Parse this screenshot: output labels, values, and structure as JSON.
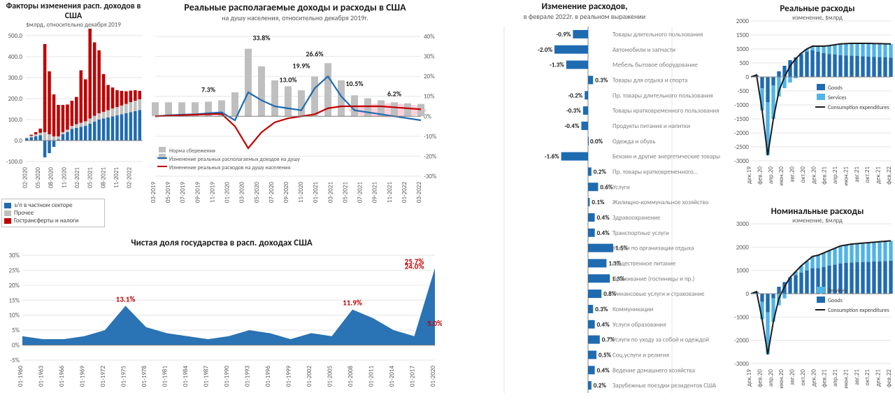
{
  "colors": {
    "blue_primary": "#1f6bb0",
    "blue_light": "#4fb4e8",
    "gray_bar": "#bfbfbf",
    "red_line": "#c00000",
    "black_line": "#1a1a1a",
    "grid": "#e6e6e6",
    "axis": "#808080",
    "text": "#404040"
  },
  "panel1": {
    "title": "Факторы изменения расп. доходов в США",
    "subtitle": "$млрд, относительно декабря 2019",
    "title_fontsize": 12,
    "subtitle_fontsize": 9,
    "ylim": [
      -100,
      500
    ],
    "ytick_step": 100,
    "xlabels": [
      "02-2020",
      "05-2020",
      "08-2020",
      "11-2020",
      "02-2021",
      "05-2021",
      "08-2021",
      "11-2021",
      "02-2022"
    ],
    "series": {
      "zp": {
        "label": "з/п в частном секторе",
        "color": "#1f6bb0",
        "values": [
          10,
          15,
          20,
          25,
          -80,
          -60,
          -30,
          5,
          30,
          40,
          55,
          60,
          65,
          70,
          80,
          90,
          100,
          105,
          110,
          115,
          120,
          125,
          130,
          135,
          140,
          145
        ]
      },
      "other": {
        "label": "Прочее",
        "color": "#bfbfbf",
        "values": [
          5,
          8,
          10,
          12,
          40,
          30,
          20,
          15,
          10,
          12,
          15,
          18,
          20,
          22,
          25,
          28,
          30,
          32,
          35,
          38,
          40,
          42,
          45,
          48,
          50,
          52
        ]
      },
      "transfers": {
        "label": "Гострансферты и налоги",
        "color": "#c00000",
        "values": [
          0,
          5,
          10,
          20,
          420,
          300,
          200,
          150,
          130,
          120,
          120,
          130,
          250,
          200,
          430,
          350,
          300,
          180,
          120,
          100,
          80,
          70,
          60,
          55,
          50,
          40
        ]
      }
    }
  },
  "panel2": {
    "title": "Реальные располагаемые доходы и расходы в США",
    "subtitle": "на душу населения, относительно декабря 2019г.",
    "title_fontsize": 14,
    "ylim_right": [
      -30,
      40
    ],
    "ytick_step_right": 10,
    "xlabels": [
      "03-2019",
      "05-2019",
      "07-2019",
      "09-2019",
      "11-2019",
      "01-2020",
      "03-2020",
      "05-2020",
      "07-2020",
      "09-2020",
      "11-2020",
      "01-2021",
      "03-2021",
      "05-2021",
      "07-2021",
      "09-2021",
      "11-2021",
      "01-2022",
      "03-2022"
    ],
    "data_labels": [
      {
        "text": "7.3%",
        "x_idx": 4,
        "y": 10
      },
      {
        "text": "33.8%",
        "x_idx": 8,
        "y": 36
      },
      {
        "text": "13.0%",
        "x_idx": 10,
        "y": 15
      },
      {
        "text": "19.9%",
        "x_idx": 11,
        "y": 22
      },
      {
        "text": "26.6%",
        "x_idx": 12,
        "y": 28
      },
      {
        "text": "10.5%",
        "x_idx": 15,
        "y": 13
      },
      {
        "text": "6.2%",
        "x_idx": 18,
        "y": 8
      }
    ],
    "savings_bars": {
      "label": "Норма сбережения",
      "color": "#bfbfbf",
      "values": [
        7,
        7,
        7,
        7,
        7.3,
        8,
        12,
        33.8,
        25,
        18,
        15,
        13,
        19.9,
        26.6,
        18,
        10.5,
        9,
        8,
        7,
        6.5,
        6.2
      ]
    },
    "income_line": {
      "label": "Изменение реальных располагаемых доходов на душу",
      "color": "#1f6bb0",
      "values": [
        0,
        0.5,
        0.8,
        1,
        1.5,
        2,
        -2,
        12,
        8,
        5,
        4,
        3,
        14,
        20,
        10,
        3,
        2,
        1,
        0,
        -1,
        -2
      ]
    },
    "expense_line": {
      "label": "Изменение реальных расходов на душу населения",
      "color": "#c00000",
      "values": [
        0,
        0.3,
        0.5,
        0.8,
        1,
        1.2,
        -5,
        -16,
        -8,
        -3,
        -1,
        0,
        1,
        4,
        5,
        5,
        5,
        5,
        4.5,
        4,
        3.5
      ]
    },
    "highlight_ellipse": {
      "color": "#ffb3c6",
      "x_start_idx": 15,
      "x_end_idx": 20,
      "y": 3
    }
  },
  "panel3": {
    "title": "Чистая доля государства в расп. доходах США",
    "title_fontsize": 13,
    "ylim": [
      -5,
      30
    ],
    "ytick_step": 5,
    "xlabels": [
      "01-1960",
      "01-1963",
      "01-1966",
      "01-1969",
      "01-1972",
      "01-1975",
      "01-1978",
      "01-1981",
      "01-1984",
      "01-1987",
      "01-1990",
      "01-1993",
      "01-1996",
      "01-1999",
      "01-2002",
      "01-2005",
      "01-2008",
      "01-2011",
      "01-2014",
      "01-2017",
      "01-2020"
    ],
    "color": "#1f6bb0",
    "data_labels": [
      {
        "text": "13.1%",
        "x_idx": 5,
        "y": 13.1,
        "color": "#c00000"
      },
      {
        "text": "11.9%",
        "x_idx": 16,
        "y": 11.9,
        "color": "#c00000"
      },
      {
        "text": "24.0%",
        "x_idx": 19,
        "y": 24.0,
        "color": "#c00000"
      },
      {
        "text": "25.7%",
        "x_idx": 19,
        "y": 25.7,
        "color": "#c00000"
      },
      {
        "text": "5.0%",
        "x_idx": 20,
        "y": 5.0,
        "color": "#c00000"
      }
    ],
    "values": [
      3,
      2,
      2,
      3,
      5,
      13.1,
      6,
      4,
      3,
      2,
      3,
      5,
      4,
      2,
      4,
      3,
      11.9,
      9,
      5,
      3,
      25.7
    ]
  },
  "panel4": {
    "title": "Изменение расходов,",
    "subtitle": "в феврале 2022г. в реальном выражении",
    "title_fontsize": 13,
    "xlim": [
      -20,
      5
    ],
    "xtick_step": 5,
    "bar_color": "#1f6bb0",
    "categories": [
      {
        "label": "Товары длительного пользования",
        "value": -0.9
      },
      {
        "label": "Автомобили и запчасти",
        "value": -2.0
      },
      {
        "label": "Мебель бытовое оборудование",
        "value": -1.3
      },
      {
        "label": "Товары для отдыха и спорта",
        "value": 0.3
      },
      {
        "label": "Пр. товары длительного пользования",
        "value": -0.2
      },
      {
        "label": "Товары кратковременного пользования",
        "value": -0.3
      },
      {
        "label": "Продукты питания и напитки",
        "value": -0.4
      },
      {
        "label": "Одежда и обувь",
        "value": 0.0
      },
      {
        "label": "Бензин и другие энергетические товары",
        "value": -1.6
      },
      {
        "label": "Пр. товары кратковременного…",
        "value": 0.2
      },
      {
        "label": "Услуги",
        "value": 0.6
      },
      {
        "label": "Жилищно-коммунальное хозяйство",
        "value": 0.1
      },
      {
        "label": "Здравоохранение",
        "value": 0.4
      },
      {
        "label": "Транспортные услуги",
        "value": 0.4
      },
      {
        "label": "Услуги по организации отдыха",
        "value": 1.5
      },
      {
        "label": "Общественное питание",
        "value": 1.1
      },
      {
        "label": "Проживание (гостиницы и пр.)",
        "value": 1.3
      },
      {
        "label": "Финансовые услуги и страхование",
        "value": 0.8
      },
      {
        "label": "Коммуникации",
        "value": 0.3
      },
      {
        "label": "Услуги образования",
        "value": 0.4
      },
      {
        "label": "Услуги по уходу за собой и одеждой",
        "value": 0.7
      },
      {
        "label": "Соц.услуги и религия",
        "value": 0.5
      },
      {
        "label": "Ведение домашнего хозяйства",
        "value": 0.4
      },
      {
        "label": "Зарубежные поездки резидентов США",
        "value": 0.2
      }
    ]
  },
  "panel5": {
    "title": "Реальные расходы",
    "subtitle": "изменение, $млрд",
    "title_fontsize": 13,
    "ylim": [
      -3000,
      2000
    ],
    "ytick_step": 500,
    "xlabels": [
      "дек.19",
      "фев.20",
      "апр.20",
      "июн.20",
      "авг.20",
      "окт.20",
      "дек.20",
      "фев.21",
      "апр.21",
      "июн.21",
      "авг.21",
      "окт.21",
      "дек.21",
      "фев.22"
    ],
    "legend": [
      {
        "label": "Goods",
        "color": "#1f6bb0",
        "type": "box"
      },
      {
        "label": "Services",
        "color": "#4fb4e8",
        "type": "box"
      },
      {
        "label": "Consumption expenditures",
        "color": "#1a1a1a",
        "type": "line"
      }
    ],
    "goods": [
      0,
      50,
      -400,
      -900,
      -300,
      200,
      400,
      600,
      700,
      800,
      900,
      950,
      900,
      850,
      820,
      800,
      780,
      770,
      760,
      750,
      740,
      730,
      720,
      710,
      700,
      690
    ],
    "services": [
      0,
      20,
      -800,
      -1900,
      -1200,
      -700,
      -400,
      -200,
      -50,
      50,
      100,
      150,
      200,
      250,
      300,
      350,
      400,
      420,
      440,
      450,
      460,
      470,
      475,
      480,
      485,
      490
    ],
    "total": [
      0,
      70,
      -1200,
      -2800,
      -1500,
      -500,
      0,
      400,
      650,
      850,
      1000,
      1100,
      1100,
      1100,
      1120,
      1150,
      1180,
      1190,
      1200,
      1200,
      1200,
      1200,
      1195,
      1190,
      1185,
      1180
    ]
  },
  "panel6": {
    "title": "Номинальные расходы",
    "subtitle": "изменение, $млрд",
    "title_fontsize": 13,
    "ylim": [
      -3000,
      3000
    ],
    "ytick_step": 1000,
    "xlabels": [
      "дек.19",
      "фев.20",
      "апр.20",
      "июн.20",
      "авг.20",
      "окт.20",
      "дек.20",
      "фев.21",
      "апр.21",
      "июн.21",
      "авг.21",
      "окт.21",
      "дек.21",
      "фев.22"
    ],
    "legend": [
      {
        "label": "Services",
        "color": "#4fb4e8",
        "type": "box"
      },
      {
        "label": "Goods",
        "color": "#1f6bb0",
        "type": "box"
      },
      {
        "label": "Consumption expenditures",
        "color": "#1a1a1a",
        "type": "line"
      }
    ],
    "goods": [
      0,
      60,
      -350,
      -800,
      -200,
      300,
      500,
      700,
      800,
      900,
      1000,
      1100,
      1100,
      1150,
      1200,
      1250,
      1300,
      1320,
      1340,
      1350,
      1360,
      1370,
      1380,
      1390,
      1400,
      1410
    ],
    "services": [
      0,
      30,
      -750,
      -1800,
      -1000,
      -500,
      -200,
      0,
      150,
      300,
      400,
      500,
      550,
      600,
      650,
      700,
      750,
      770,
      790,
      800,
      810,
      820,
      830,
      840,
      850,
      860
    ],
    "total": [
      0,
      90,
      -1100,
      -2600,
      -1200,
      -200,
      300,
      700,
      950,
      1200,
      1400,
      1600,
      1650,
      1750,
      1850,
      1950,
      2050,
      2090,
      2130,
      2150,
      2170,
      2190,
      2210,
      2230,
      2250,
      2270
    ]
  }
}
